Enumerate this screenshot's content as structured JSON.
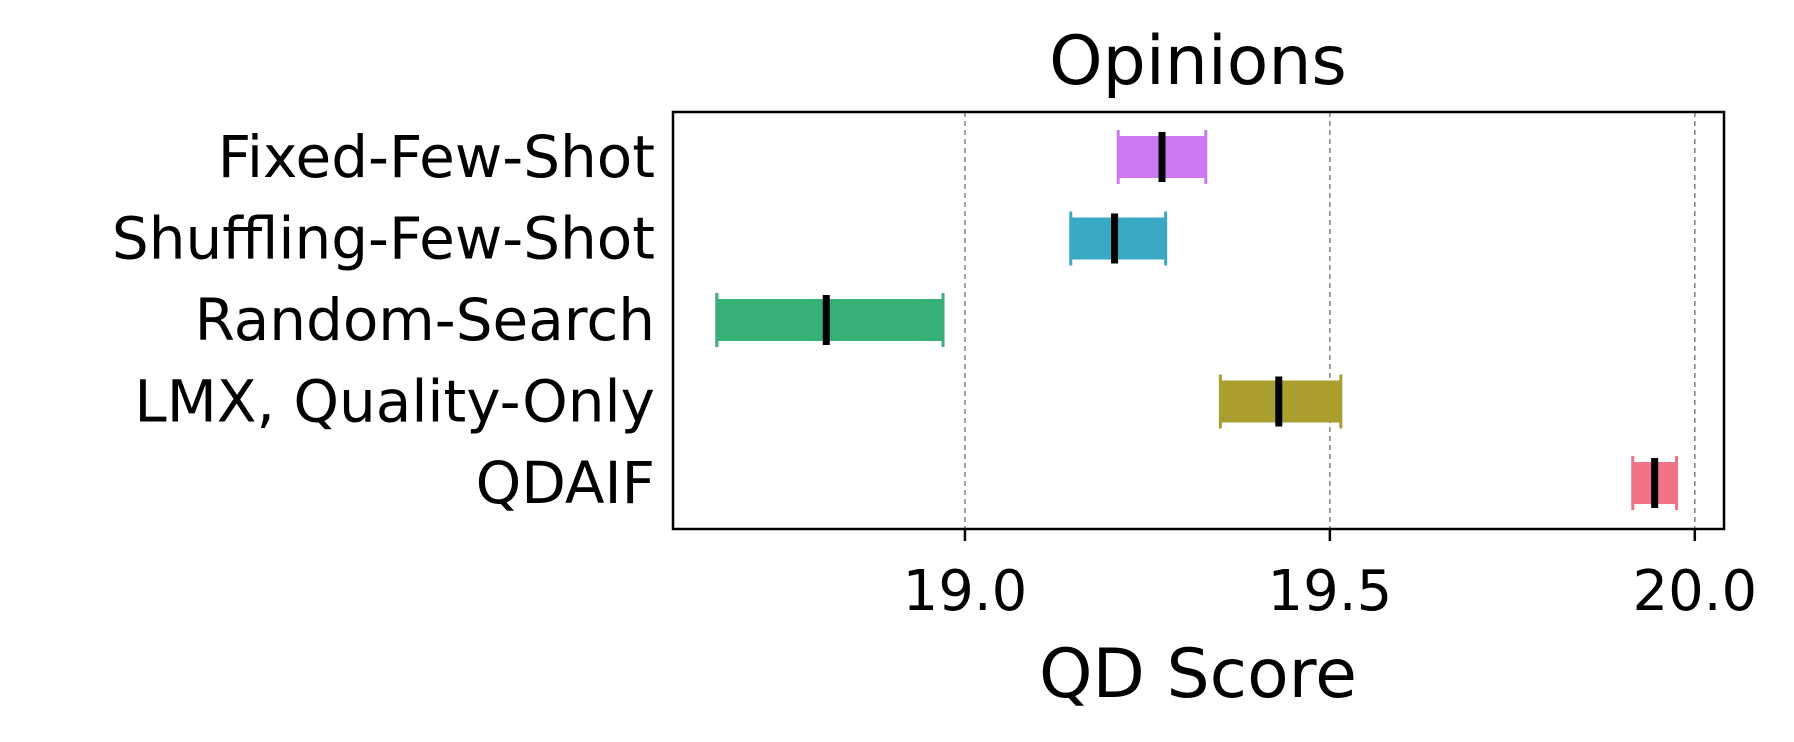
{
  "chart_data": {
    "type": "interval",
    "title": "Opinions",
    "xlabel": "QD Score",
    "ylabel": "",
    "xlim": [
      18.6,
      20.04
    ],
    "xticks": [
      "19.0",
      "19.5",
      "20.0"
    ],
    "xtick_values": [
      19.0,
      19.5,
      20.0
    ],
    "grid": "vertical dashed at x ticks",
    "series": [
      {
        "name": "Fixed-Few-Shot",
        "low": 19.21,
        "high": 19.33,
        "median": 19.27,
        "color": "#cc78f0"
      },
      {
        "name": "Shuffling-Few-Shot",
        "low": 19.145,
        "high": 19.275,
        "median": 19.205,
        "color": "#39a9c4"
      },
      {
        "name": "Random-Search",
        "low": 18.66,
        "high": 18.97,
        "median": 18.81,
        "color": "#36b077"
      },
      {
        "name": "LMX, Quality-Only",
        "low": 19.35,
        "high": 19.515,
        "median": 19.43,
        "color": "#aa9e2f"
      },
      {
        "name": "QDAIF",
        "low": 19.915,
        "high": 19.975,
        "median": 19.945,
        "color": "#f27287"
      }
    ]
  }
}
